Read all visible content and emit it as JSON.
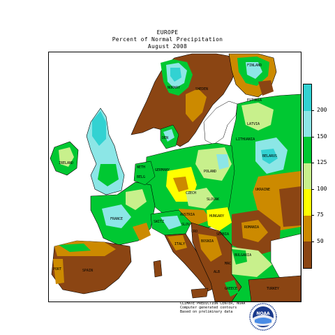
{
  "header": {
    "region": "EUROPE",
    "subtitle": "Percent of Normal Precipitation",
    "period": "August 2008"
  },
  "legend": {
    "units": "percent of normal",
    "bins": [
      {
        "label": "50",
        "color": "#8b4513"
      },
      {
        "label": "75",
        "color": "#cc8a00"
      },
      {
        "label": "100",
        "color": "#ffff00"
      },
      {
        "label": "125",
        "color": "#c8f08c"
      },
      {
        "label": "150",
        "color": "#00c832"
      },
      {
        "label": "200",
        "color": "#8ce6e6"
      },
      {
        "label": "",
        "color": "#32d2d2"
      }
    ]
  },
  "map": {
    "country_labels": [
      {
        "name": "FINLAND"
      },
      {
        "name": "NORWAY"
      },
      {
        "name": "SWEDEN"
      },
      {
        "name": "ESTONIA"
      },
      {
        "name": "LATVIA"
      },
      {
        "name": "LITHUANIA"
      },
      {
        "name": "BELARUS"
      },
      {
        "name": "DEN"
      },
      {
        "name": "IRELAND"
      },
      {
        "name": "NETH"
      },
      {
        "name": "BELG"
      },
      {
        "name": "GERMANY"
      },
      {
        "name": "POLAND"
      },
      {
        "name": "CZECH"
      },
      {
        "name": "SLOVAK"
      },
      {
        "name": "UKRAINE"
      },
      {
        "name": "FRANCE"
      },
      {
        "name": "SWITZ"
      },
      {
        "name": "AUSTRIA"
      },
      {
        "name": "HUNGARY"
      },
      {
        "name": "SLOV"
      },
      {
        "name": "CRO"
      },
      {
        "name": "BOSNIA"
      },
      {
        "name": "SERBIA"
      },
      {
        "name": "ROMANIA"
      },
      {
        "name": "BULGARIA"
      },
      {
        "name": "ITALY"
      },
      {
        "name": "PORT"
      },
      {
        "name": "SPAIN"
      },
      {
        "name": "MAC"
      },
      {
        "name": "ALB"
      },
      {
        "name": "GREECE"
      },
      {
        "name": "TURKEY"
      }
    ]
  },
  "credit": {
    "line1": "CLIMATE PREDICTION CENTER, NOAA",
    "line2": "Computer generated contours",
    "line3": "Based on preliminary data"
  },
  "logo": {
    "text": "NOAA"
  }
}
